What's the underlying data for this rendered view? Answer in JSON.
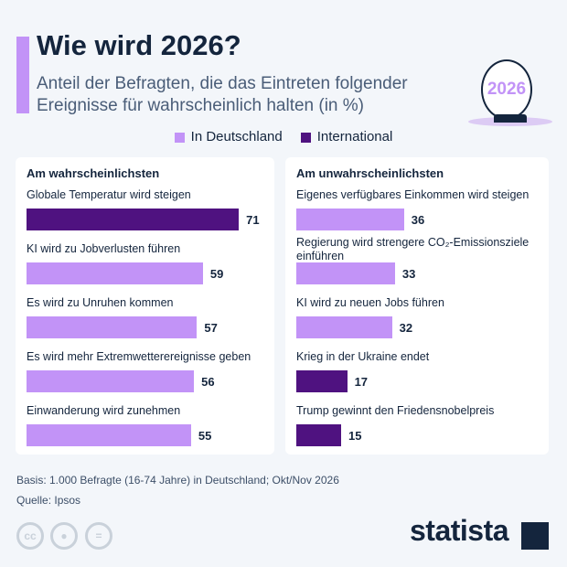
{
  "header": {
    "title": "Wie wird 2026?",
    "subtitle": "Anteil der Befragten, die das Eintreten folgender Ereignisse für wahrscheinlich halten (in %)",
    "badge": "2026"
  },
  "legend": [
    {
      "label": "In Deutschland",
      "color": "#c293f7"
    },
    {
      "label": "International",
      "color": "#4f1280"
    }
  ],
  "chart_data": [
    {
      "type": "bar",
      "title": "Am wahrscheinlichsten",
      "orientation": "horizontal",
      "categories": [
        "Globale Temperatur wird steigen",
        "KI wird zu Jobverlusten führen",
        "Es wird zu Unruhen kommen",
        "Es wird mehr Extremwetterereignisse geben",
        "Einwanderung wird zunehmen"
      ],
      "values": [
        71,
        59,
        57,
        56,
        55
      ],
      "groups": [
        "International",
        "In Deutschland",
        "In Deutschland",
        "In Deutschland",
        "In Deutschland"
      ]
    },
    {
      "type": "bar",
      "title": "Am unwahrscheinlichsten",
      "orientation": "horizontal",
      "categories": [
        "Eigenes verfügbares Einkommen wird steigen",
        "Regierung wird strengere CO₂-Emissionsziele einführen",
        "KI wird zu neuen Jobs führen",
        "Krieg in der Ukraine endet",
        "Trump gewinnt den Friedensnobelpreis"
      ],
      "values": [
        36,
        33,
        32,
        17,
        15
      ],
      "groups": [
        "In Deutschland",
        "In Deutschland",
        "In Deutschland",
        "International",
        "International"
      ]
    }
  ],
  "footer": {
    "basis": "Basis: 1.000 Befragte (16-74 Jahre) in Deutschland; Okt/Nov 2026",
    "source": "Quelle: Ipsos",
    "cc": "cc",
    "equals": "=",
    "brand": "statista"
  }
}
